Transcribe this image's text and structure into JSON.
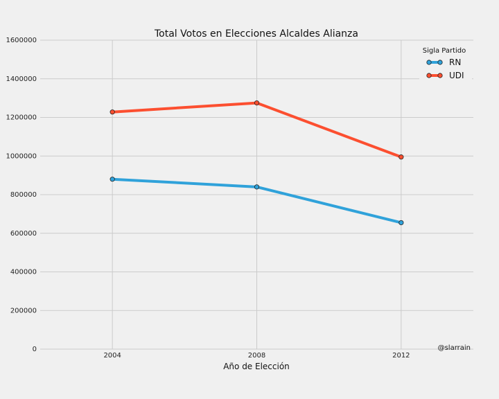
{
  "chart_data": {
    "type": "line",
    "title": "Total Votos en Elecciones Alcaldes Alianza",
    "xlabel": "Año de Elección",
    "ylabel": "",
    "x": [
      2004,
      2008,
      2012
    ],
    "xlim": [
      2002,
      2014
    ],
    "ylim": [
      0,
      1600000
    ],
    "y_ticks": [
      0,
      200000,
      400000,
      600000,
      800000,
      1000000,
      1200000,
      1400000,
      1600000
    ],
    "grid": true,
    "legend": {
      "title": "Sigla Partido",
      "position": "top-right"
    },
    "series": [
      {
        "name": "RN",
        "color": "#30a2da",
        "values": [
          880000,
          840000,
          655000
        ]
      },
      {
        "name": "UDI",
        "color": "#fc4f30",
        "values": [
          1228000,
          1275000,
          995000
        ]
      }
    ]
  },
  "credit": "@slarrain"
}
